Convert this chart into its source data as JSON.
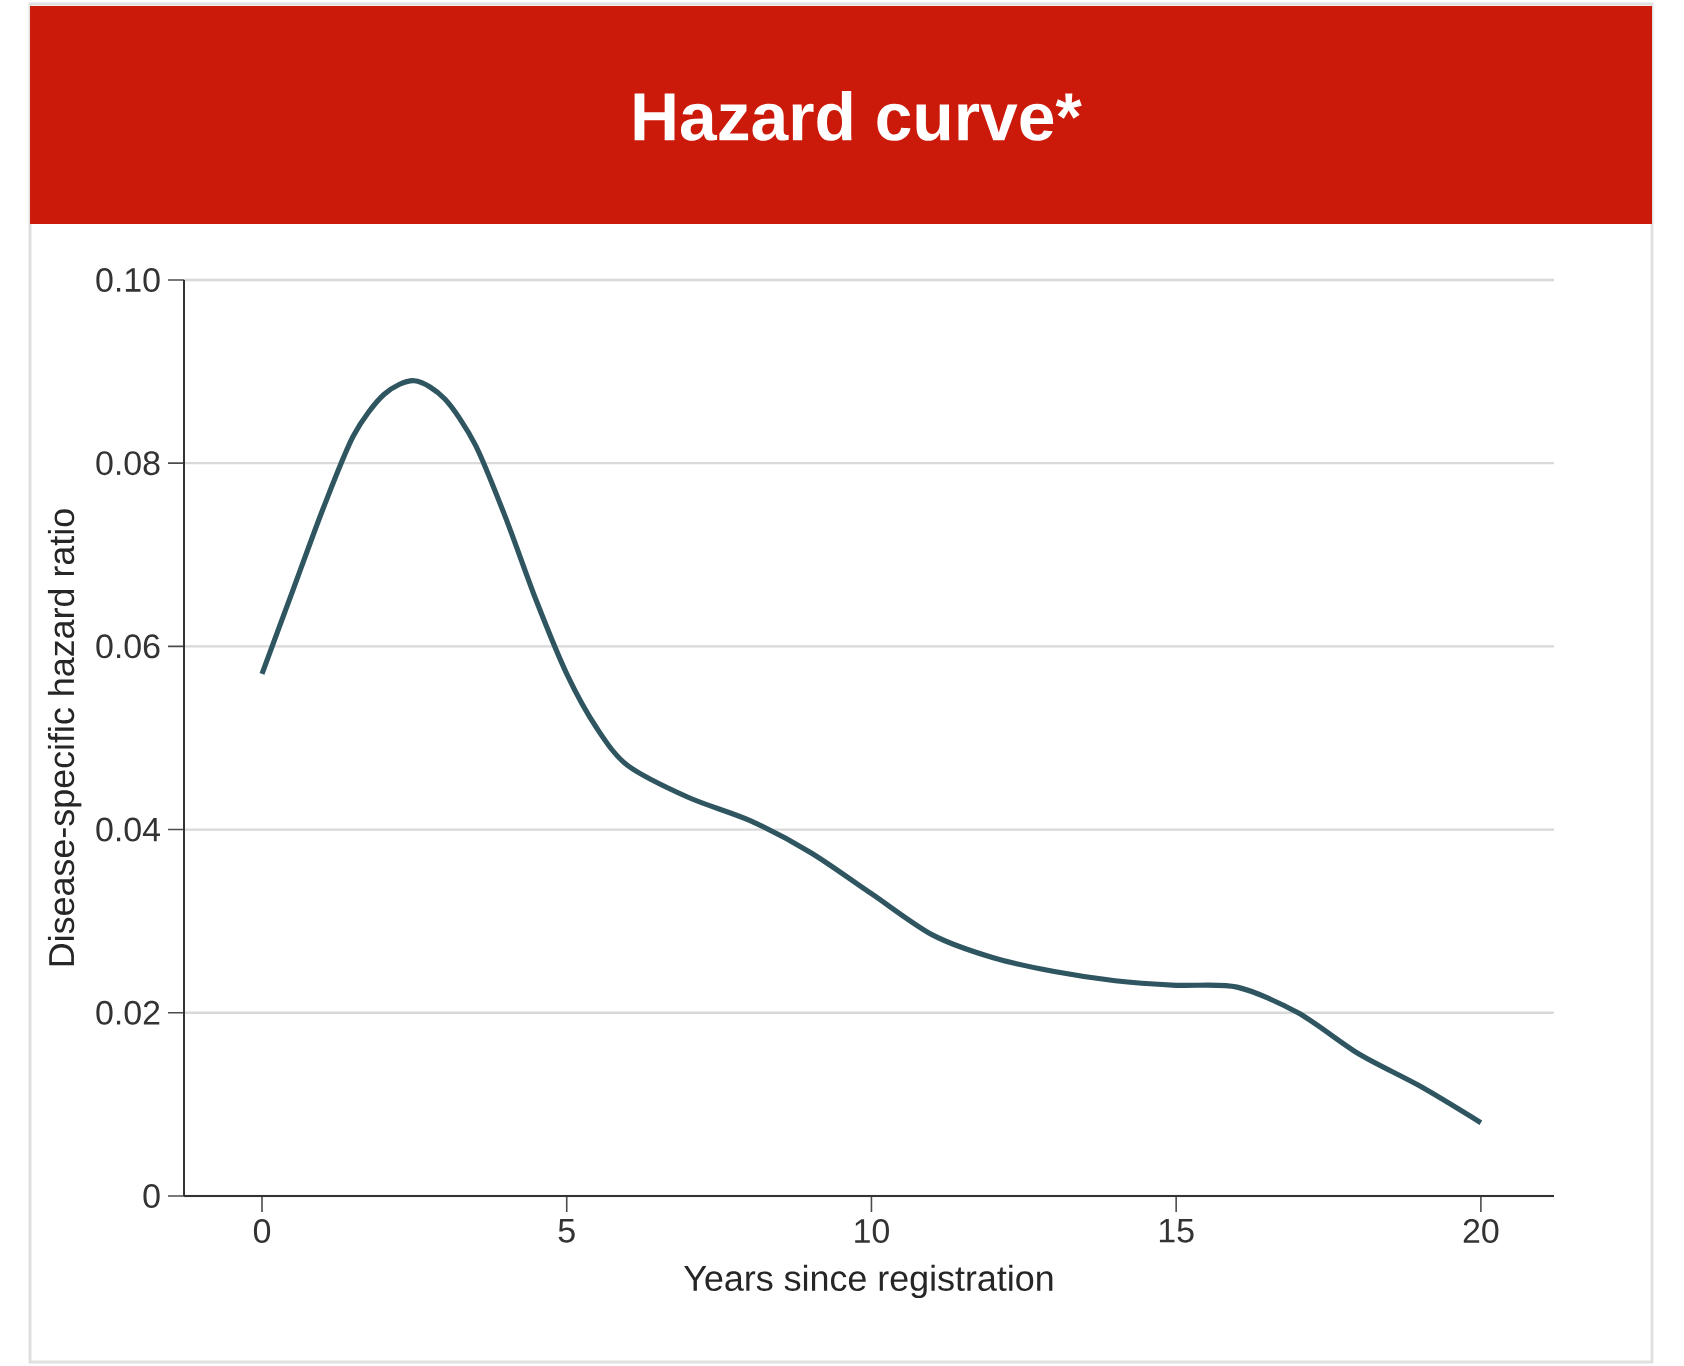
{
  "chart_data": {
    "type": "line",
    "title": "Hazard curve*",
    "xlabel": "Years since registration",
    "ylabel": "Disease-specific hazard ratio",
    "xlim": [
      -1.28,
      21.2
    ],
    "xticks": [
      0,
      5,
      10,
      15,
      20
    ],
    "ylim": [
      0,
      0.1
    ],
    "yticks": [
      0,
      0.02,
      0.04,
      0.06,
      0.08,
      {
        "value": 0.1,
        "label": "0.10"
      }
    ],
    "grid": "y",
    "series": [
      {
        "color": "#2e5560",
        "x": [
          0,
          0.5,
          1,
          1.5,
          2,
          2.5,
          3,
          3.5,
          4,
          4.5,
          5,
          5.5,
          6,
          7,
          8,
          9,
          10,
          11,
          12,
          13,
          14,
          15,
          16,
          17,
          18,
          19,
          20
        ],
        "values": [
          0.057,
          0.066,
          0.075,
          0.083,
          0.0875,
          0.089,
          0.087,
          0.082,
          0.074,
          0.065,
          0.057,
          0.051,
          0.047,
          0.0435,
          0.041,
          0.0375,
          0.033,
          0.0285,
          0.026,
          0.0245,
          0.0235,
          0.023,
          0.0228,
          0.02,
          0.0155,
          0.012,
          0.008
        ]
      }
    ]
  }
}
